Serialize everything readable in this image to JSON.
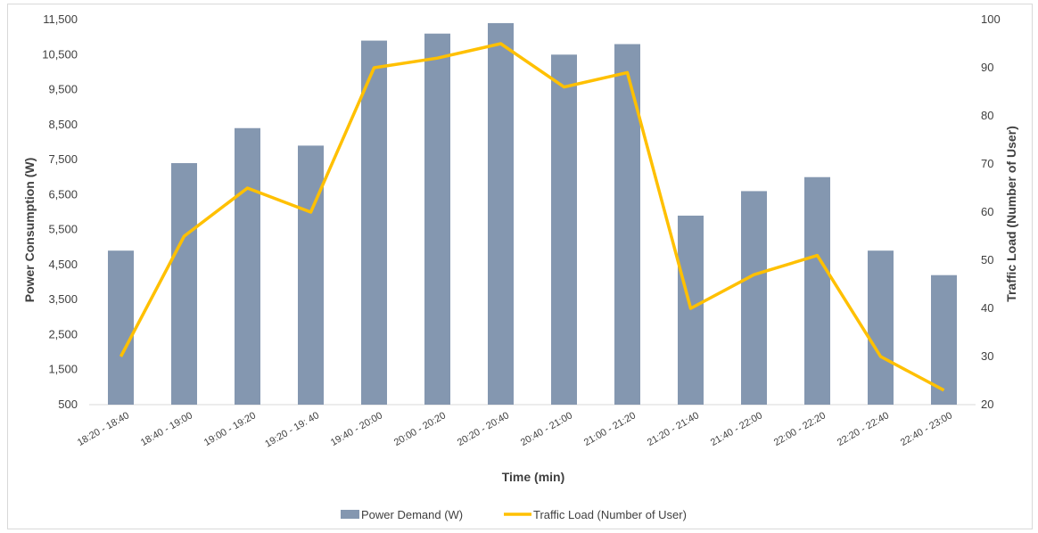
{
  "chart_data": {
    "type": "bar",
    "categories": [
      "18:20 - 18:40",
      "18:40 - 19:00",
      "19:00 - 19:20",
      "19:20 - 19: 40",
      "19:40 - 20:00",
      "20:00 - 20:20",
      "20:20 - 20:40",
      "20:40 - 21:00",
      "21:00 - 21:20",
      "21:20 - 21:40",
      "21:40 - 22:00",
      "22:00 - 22:20",
      "22:20 - 22:40",
      "22:40 - 23:00"
    ],
    "series": [
      {
        "name": "Power Demand (W)",
        "type": "bar",
        "axis": "left",
        "color": "#8497b0",
        "values": [
          4900,
          7400,
          8400,
          7900,
          10900,
          11100,
          11400,
          10500,
          10800,
          5900,
          6600,
          7000,
          4900,
          4200
        ]
      },
      {
        "name": "Traffic Load (Number of User)",
        "type": "line",
        "axis": "right",
        "color": "#ffc000",
        "values": [
          30,
          55,
          65,
          60,
          90,
          92,
          95,
          86,
          89,
          40,
          47,
          51,
          30,
          23
        ]
      }
    ],
    "xlabel": "Time (min)",
    "ylabel": "Power Consumption (W)",
    "y2label": "Traffic Load (Number of User)",
    "ylim": [
      500,
      11500
    ],
    "yticks": [
      "500",
      "1,500",
      "2,500",
      "3,500",
      "4,500",
      "5,500",
      "6,500",
      "7,500",
      "8,500",
      "9,500",
      "10,500",
      "11,500"
    ],
    "y2lim": [
      20,
      100
    ],
    "y2ticks": [
      "20",
      "30",
      "40",
      "50",
      "60",
      "70",
      "80",
      "90",
      "100"
    ],
    "grid": false,
    "legend": "bottom"
  }
}
